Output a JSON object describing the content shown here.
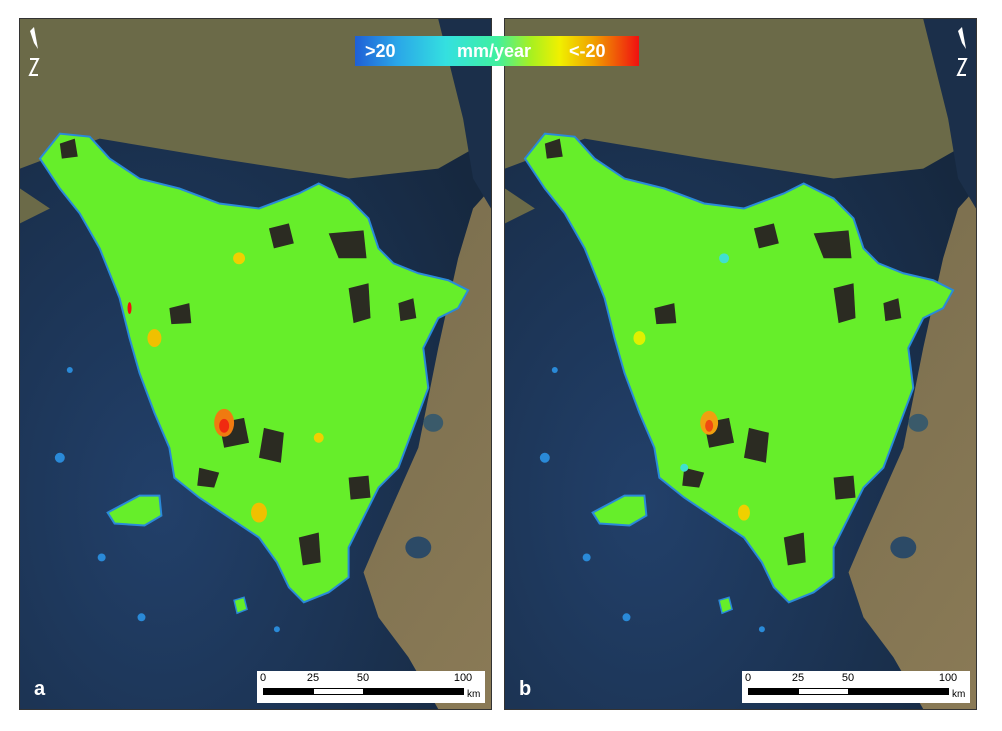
{
  "legend": {
    "min_label": ">20",
    "unit_label": "mm/year",
    "max_label": "<-20",
    "colors": [
      "#1f5fd6",
      "#34e0e0",
      "#40f0a0",
      "#a8f020",
      "#f0f000",
      "#f0a000",
      "#f01010"
    ]
  },
  "panels": [
    {
      "label": "a",
      "scale": {
        "ticks": [
          "0",
          "25",
          "50",
          "100"
        ],
        "unit": "km"
      },
      "north_symbol": "north-arrow-icon"
    },
    {
      "label": "b",
      "scale": {
        "ticks": [
          "0",
          "25",
          "50",
          "100"
        ],
        "unit": "km"
      },
      "north_symbol": "north-arrow-icon"
    }
  ],
  "colors": {
    "sea": "#1e3552",
    "land": "#6f6a4a",
    "deformation_base": "#66ee2a",
    "boundary": "#2a8ad8"
  }
}
